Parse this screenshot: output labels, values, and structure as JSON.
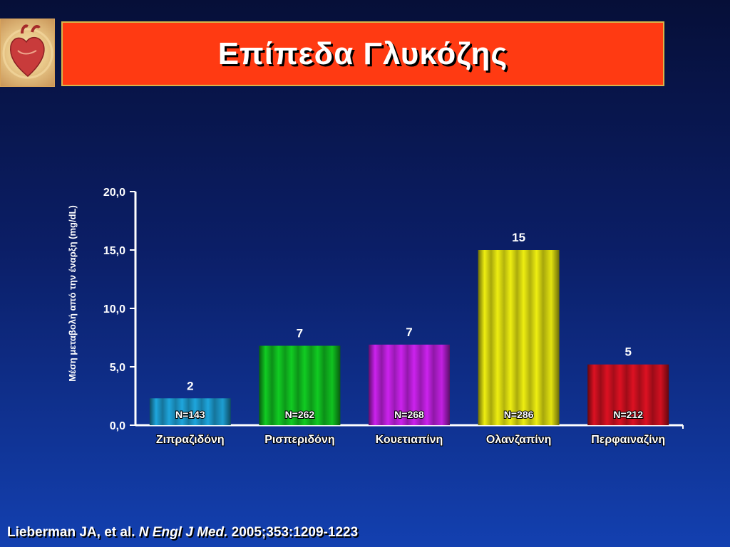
{
  "slide": {
    "title": "Επίπεδα Γλυκόζης",
    "citation_authors": "Lieberman JA, et al. ",
    "citation_journal": "N Engl J Med.",
    "citation_details": " 2005;353:1209-1223"
  },
  "chart_data": {
    "type": "bar",
    "ylabel": "Μέση μεταβολή από την έναρξη (mg/dL)",
    "ylim": [
      0,
      20
    ],
    "yticks": [
      "0,0",
      "5,0",
      "10,0",
      "15,0",
      "20,0"
    ],
    "ytick_values": [
      0,
      5,
      10,
      15,
      20
    ],
    "categories": [
      "Ζιπραζιδόνη",
      "Ρισπεριδόνη",
      "Κουετιαπίνη",
      "Ολανζαπίνη",
      "Περφαιναζίνη"
    ],
    "values": [
      2.3,
      6.8,
      6.9,
      15.0,
      5.2
    ],
    "data_labels": [
      "2",
      "7",
      "7",
      "15",
      "5"
    ],
    "n_labels": [
      "N=143",
      "N=262",
      "N=268",
      "N=286",
      "N=212"
    ],
    "colors": [
      "#1ea6dd",
      "#11cc22",
      "#cc22ee",
      "#eeee11",
      "#dd1122"
    ]
  }
}
